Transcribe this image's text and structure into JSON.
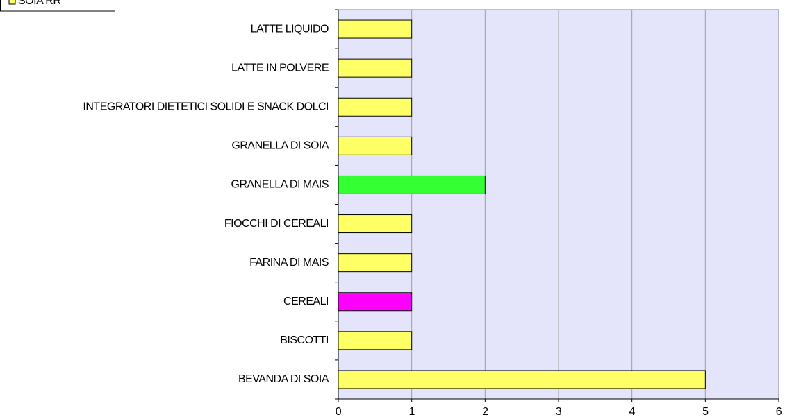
{
  "chart_data": {
    "type": "bar",
    "orientation": "horizontal",
    "categories": [
      "LATTE LIQUIDO",
      "LATTE IN POLVERE",
      "INTEGRATORI DIETETICI SOLIDI E SNACK DOLCI",
      "GRANELLA DI SOIA",
      "GRANELLA DI MAIS",
      "FIOCCHI DI CEREALI",
      "FARINA DI MAIS",
      "CEREALI",
      "BISCOTTI",
      "BEVANDA DI SOIA"
    ],
    "values": [
      1,
      1,
      1,
      1,
      2,
      1,
      1,
      1,
      1,
      5
    ],
    "colors": [
      "#ffff66",
      "#ffff66",
      "#ffff66",
      "#ffff66",
      "#33ff33",
      "#ffff66",
      "#ffff66",
      "#ff00ff",
      "#ffff66",
      "#ffff66"
    ],
    "legend": [
      {
        "name": "SOIA RR",
        "color": "#ffff66"
      }
    ],
    "legend_position": "upper left",
    "xlim": [
      0,
      6
    ],
    "xticks": [
      0,
      1,
      2,
      3,
      4,
      5,
      6
    ],
    "grid": true
  }
}
